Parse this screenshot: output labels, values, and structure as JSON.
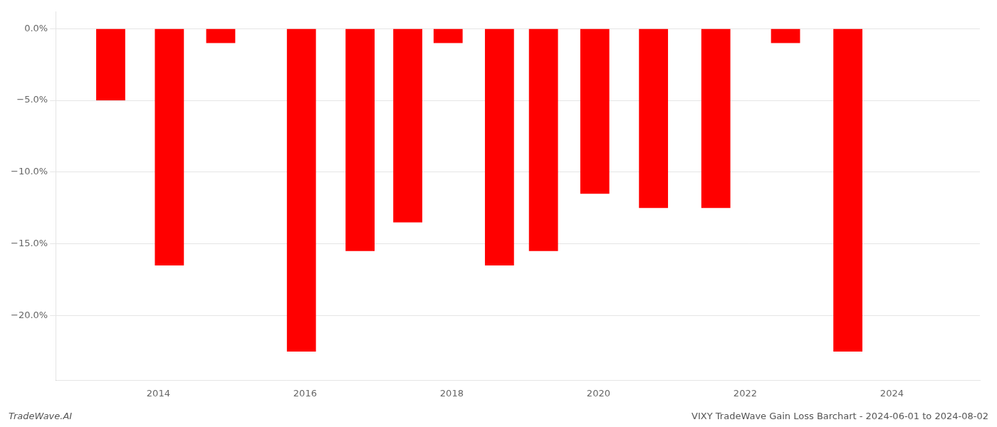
{
  "chart_data": {
    "type": "bar",
    "title": "VIXY TradeWave Gain Loss Barchart - 2024-06-01 to 2024-08-02",
    "annotations": [
      "TradeWave.AI"
    ],
    "x": [
      2013.35,
      2014.15,
      2014.85,
      2015.95,
      2016.75,
      2017.4,
      2017.95,
      2018.65,
      2019.25,
      2019.95,
      2020.75,
      2021.6,
      2022.55,
      2023.4
    ],
    "values": [
      -5.0,
      -16.5,
      -1.0,
      -22.5,
      -15.5,
      -13.5,
      -1.0,
      -16.5,
      -15.5,
      -11.5,
      -12.5,
      -12.5,
      -1.0,
      -22.5
    ],
    "color": "#ff0000",
    "xlim": [
      2012.6,
      2025.2
    ],
    "xticks": [
      2014,
      2016,
      2018,
      2020,
      2022,
      2024
    ],
    "ylim": [
      -24.5,
      1.2
    ],
    "yticks": [
      {
        "value": 0.0,
        "label": "0.0%"
      },
      {
        "value": -5.0,
        "label": "−5.0%"
      },
      {
        "value": -10.0,
        "label": "−10.0%"
      },
      {
        "value": -15.0,
        "label": "−15.0%"
      },
      {
        "value": -20.0,
        "label": "−20.0%"
      }
    ],
    "grid": true
  }
}
